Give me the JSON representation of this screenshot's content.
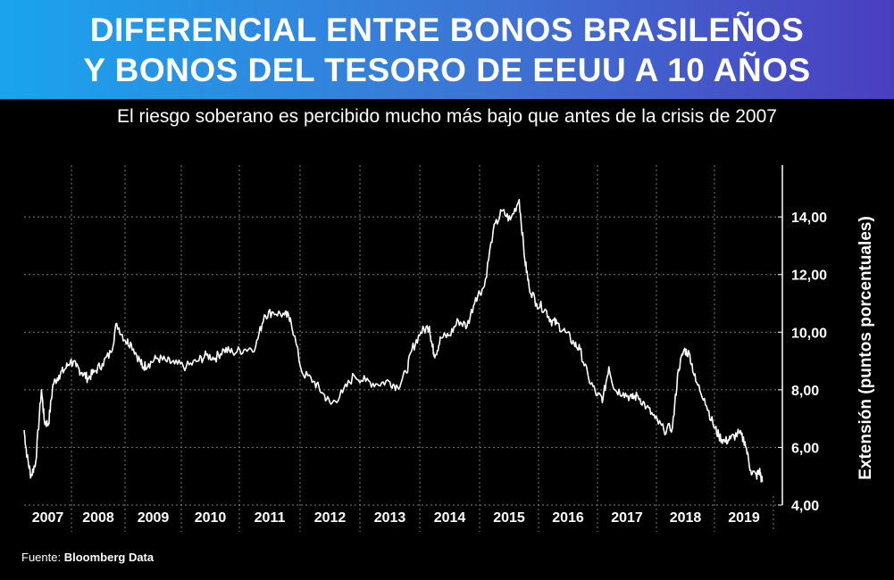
{
  "header": {
    "title_line1": "DIFERENCIAL ENTRE BONOS BRASILEÑOS",
    "title_line2": "Y BONOS DEL TESORO DE EEUU A 10 AÑOS",
    "subtitle": "El riesgo soberano es percibido mucho más bajo que antes de la crisis de 2007"
  },
  "source": {
    "label": "Fuente:",
    "value": "Bloomberg Data"
  },
  "colors": {
    "background": "#000000",
    "banner_start": "#1aa4ee",
    "banner_end": "#4a3ec0",
    "line": "#ffffff",
    "grid": "#7a7a7a"
  },
  "chart_data": {
    "type": "line",
    "title": "DIFERENCIAL ENTRE BONOS BRASILEÑOS Y BONOS DEL TESORO DE EEUU A 10 AÑOS",
    "subtitle": "El riesgo soberano es percibido mucho más bajo que antes de la crisis de 2007",
    "ylabel": "Extensión (puntos porcentuales)",
    "xlabel": "",
    "y_axis_position": "right",
    "ylim": [
      4,
      15.8
    ],
    "yticks": [
      4,
      6,
      8,
      10,
      12,
      14
    ],
    "ytick_labels": [
      "4,00",
      "6,00",
      "8,00",
      "10,00",
      "12,00",
      "14,00"
    ],
    "xlim": [
      2007.0,
      2019.85
    ],
    "year_labels": [
      "2007",
      "2008",
      "2009",
      "2010",
      "2011",
      "2012",
      "2013",
      "2014",
      "2015",
      "2016",
      "2017",
      "2018",
      "2019"
    ],
    "grid": true,
    "legend": "none",
    "series": [
      {
        "name": "",
        "x": [
          2007.0,
          2007.05,
          2007.12,
          2007.2,
          2007.3,
          2007.35,
          2007.42,
          2007.5,
          2007.6,
          2007.7,
          2007.8,
          2007.9,
          2008.0,
          2008.1,
          2008.2,
          2008.35,
          2008.5,
          2008.6,
          2008.75,
          2008.85,
          2009.0,
          2009.05,
          2009.15,
          2009.3,
          2009.45,
          2009.6,
          2009.8,
          2010.0,
          2010.15,
          2010.3,
          2010.45,
          2010.6,
          2010.8,
          2011.0,
          2011.15,
          2011.3,
          2011.5,
          2011.6,
          2011.8,
          2012.0,
          2012.15,
          2012.3,
          2012.5,
          2012.7,
          2012.9,
          2013.1,
          2013.3,
          2013.45,
          2013.6,
          2013.7,
          2013.85,
          2014.0,
          2014.05,
          2014.1,
          2014.2,
          2014.35,
          2014.5,
          2014.65,
          2014.8,
          2014.95,
          2015.1,
          2015.25,
          2015.4,
          2015.55,
          2015.65,
          2015.72,
          2015.85,
          2016.0,
          2016.1,
          2016.2,
          2016.35,
          2016.5,
          2016.6,
          2016.75,
          2016.9,
          2017.0,
          2017.1,
          2017.2,
          2017.35,
          2017.5,
          2017.6,
          2017.75,
          2017.9,
          2018.05,
          2018.2,
          2018.3,
          2018.4,
          2018.5,
          2018.6,
          2018.75,
          2018.9,
          2019.0,
          2019.1,
          2019.2,
          2019.35,
          2019.45,
          2019.55,
          2019.65,
          2019.7,
          2019.75
        ],
        "y": [
          6.6,
          5.7,
          5.0,
          5.5,
          8.0,
          6.9,
          6.8,
          8.2,
          8.5,
          8.7,
          9.0,
          8.8,
          8.6,
          8.4,
          8.6,
          8.9,
          9.3,
          10.3,
          9.7,
          9.6,
          9.0,
          8.8,
          8.9,
          9.1,
          9.0,
          8.9,
          8.8,
          9.0,
          9.2,
          9.1,
          9.4,
          9.3,
          9.4,
          9.5,
          10.6,
          10.7,
          10.6,
          10.5,
          8.6,
          8.3,
          7.9,
          7.5,
          7.9,
          8.5,
          8.3,
          8.2,
          8.3,
          8.1,
          8.6,
          9.4,
          10.0,
          10.2,
          9.5,
          9.2,
          9.8,
          9.9,
          10.4,
          10.2,
          11.2,
          11.6,
          13.5,
          14.2,
          13.9,
          14.6,
          12.5,
          11.6,
          11.0,
          10.8,
          10.4,
          10.3,
          10.0,
          9.6,
          9.4,
          8.4,
          7.8,
          7.7,
          8.8,
          8.0,
          7.9,
          7.7,
          7.8,
          7.4,
          7.0,
          6.6,
          6.7,
          8.7,
          9.4,
          9.2,
          8.3,
          7.7,
          6.8,
          6.4,
          6.2,
          6.3,
          6.5,
          6.2,
          5.2,
          5.0,
          5.2,
          4.8
        ]
      }
    ]
  }
}
